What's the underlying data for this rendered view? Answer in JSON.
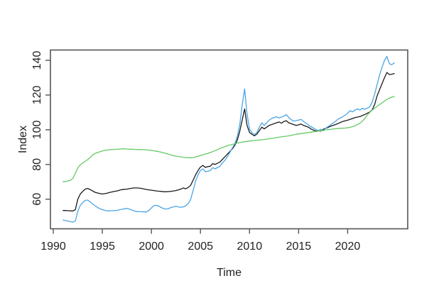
{
  "figure": {
    "background": "#ffffff",
    "box_color": "#555555",
    "tick_color": "#555555",
    "label_color": "#222222",
    "xlabel": "Time",
    "ylabel": "Index",
    "x_ticks": [
      1990,
      1995,
      2000,
      2005,
      2010,
      2015,
      2020
    ],
    "y_ticks": [
      60,
      80,
      100,
      120,
      140
    ]
  },
  "chart_data": {
    "type": "line",
    "title": "",
    "xlabel": "Time",
    "ylabel": "Index",
    "xlim": [
      1989.6,
      2026.1
    ],
    "ylim": [
      43,
      145.7
    ],
    "grid": false,
    "legend": "none",
    "x_start": 1991.0,
    "x_step": 0.25,
    "series": [
      {
        "name": "black-line",
        "color": "#1a1a1a",
        "values": [
          53.5,
          53.5,
          53.4,
          53.3,
          53.2,
          54.0,
          60.0,
          63.0,
          64.5,
          65.8,
          66.2,
          65.6,
          64.8,
          64.0,
          63.6,
          63.3,
          63.0,
          63.2,
          63.5,
          63.9,
          64.2,
          64.5,
          64.8,
          65.2,
          65.5,
          65.7,
          65.8,
          66.1,
          66.3,
          66.5,
          66.5,
          66.4,
          66.2,
          65.9,
          65.6,
          65.4,
          65.2,
          65.0,
          64.8,
          64.6,
          64.5,
          64.3,
          64.3,
          64.4,
          64.5,
          64.8,
          65.0,
          65.4,
          65.8,
          66.5,
          66.0,
          66.8,
          68.0,
          71.0,
          74.0,
          76.5,
          78.5,
          79.5,
          78.3,
          78.8,
          79.0,
          80.5,
          80.0,
          80.8,
          81.5,
          83.0,
          84.5,
          86.0,
          87.5,
          89.0,
          91.0,
          94.0,
          99.0,
          105.5,
          112.0,
          102.5,
          98.5,
          97.3,
          96.5,
          97.5,
          99.5,
          101.5,
          100.5,
          101.5,
          102.5,
          103.0,
          103.5,
          104.0,
          104.5,
          103.8,
          104.8,
          105.2,
          104.0,
          103.5,
          103.0,
          102.5,
          102.8,
          103.3,
          102.5,
          102.0,
          101.5,
          100.5,
          99.8,
          99.3,
          99.5,
          99.2,
          100.2,
          100.8,
          101.3,
          102.0,
          102.5,
          103.0,
          103.5,
          104.2,
          104.8,
          105.2,
          105.5,
          106.0,
          106.5,
          107.0,
          107.3,
          107.6,
          108.2,
          108.8,
          109.5,
          110.2,
          111.5,
          114.5,
          119.5,
          123.0,
          126.5,
          130.0,
          133.0,
          131.8,
          132.0,
          132.3
        ]
      },
      {
        "name": "blue-line",
        "color": "#4aa5e6",
        "values": [
          48.0,
          47.7,
          47.4,
          47.1,
          46.8,
          47.5,
          53.0,
          56.5,
          58.0,
          59.3,
          59.5,
          58.5,
          57.3,
          56.3,
          55.3,
          54.5,
          54.0,
          53.6,
          53.2,
          53.3,
          53.4,
          53.5,
          53.6,
          53.9,
          54.2,
          54.5,
          54.7,
          54.3,
          53.8,
          53.2,
          52.9,
          52.8,
          52.8,
          52.7,
          52.7,
          53.5,
          55.0,
          56.3,
          56.5,
          56.0,
          55.2,
          54.6,
          54.3,
          54.6,
          55.2,
          55.6,
          55.9,
          55.6,
          55.3,
          55.6,
          56.2,
          57.5,
          60.0,
          65.0,
          70.5,
          74.0,
          76.5,
          77.5,
          75.8,
          76.2,
          76.5,
          78.2,
          77.5,
          78.3,
          79.0,
          81.0,
          82.5,
          84.5,
          87.0,
          89.5,
          92.0,
          96.0,
          103.0,
          114.0,
          123.5,
          109.0,
          100.5,
          98.3,
          97.2,
          98.5,
          101.5,
          104.0,
          102.5,
          104.0,
          105.5,
          106.5,
          107.0,
          107.5,
          106.8,
          107.3,
          107.8,
          108.7,
          107.0,
          105.8,
          105.0,
          105.3,
          105.6,
          106.0,
          104.8,
          103.8,
          102.8,
          101.8,
          101.0,
          100.2,
          99.5,
          100.3,
          99.4,
          100.8,
          101.8,
          102.8,
          103.8,
          104.8,
          106.0,
          106.8,
          107.5,
          108.5,
          109.5,
          111.0,
          110.3,
          111.3,
          112.0,
          111.4,
          112.3,
          111.8,
          112.5,
          113.2,
          116.0,
          120.5,
          126.0,
          131.5,
          136.0,
          140.0,
          142.3,
          138.0,
          137.5,
          138.5
        ]
      },
      {
        "name": "green-line",
        "color": "#64c964",
        "values": [
          70.0,
          70.2,
          70.5,
          70.9,
          72.0,
          75.0,
          78.0,
          79.8,
          80.8,
          81.8,
          82.8,
          84.0,
          85.5,
          86.3,
          86.9,
          87.3,
          87.8,
          88.1,
          88.3,
          88.5,
          88.6,
          88.7,
          88.8,
          88.9,
          89.0,
          89.0,
          88.9,
          88.8,
          88.8,
          88.7,
          88.7,
          88.6,
          88.6,
          88.5,
          88.4,
          88.3,
          88.1,
          87.9,
          87.6,
          87.4,
          87.1,
          86.7,
          86.3,
          85.9,
          85.5,
          85.1,
          84.8,
          84.6,
          84.4,
          84.2,
          84.0,
          83.9,
          83.9,
          84.0,
          84.3,
          84.7,
          85.2,
          85.6,
          86.0,
          86.4,
          86.9,
          87.4,
          88.0,
          88.6,
          89.3,
          89.8,
          90.3,
          90.8,
          91.2,
          91.6,
          91.9,
          92.3,
          92.6,
          92.9,
          93.1,
          93.3,
          93.5,
          93.7,
          93.8,
          94.0,
          94.1,
          94.3,
          94.4,
          94.6,
          94.8,
          95.0,
          95.2,
          95.5,
          95.7,
          95.9,
          96.1,
          96.3,
          96.5,
          96.8,
          97.1,
          97.4,
          97.6,
          97.8,
          98.0,
          98.2,
          98.4,
          98.6,
          98.8,
          99.0,
          99.2,
          99.5,
          99.7,
          99.9,
          100.1,
          100.2,
          100.4,
          100.6,
          100.7,
          100.8,
          100.9,
          101.0,
          101.2,
          101.4,
          101.8,
          102.3,
          103.0,
          103.8,
          105.0,
          106.5,
          108.5,
          110.0,
          111.3,
          112.4,
          113.5,
          114.5,
          115.5,
          116.5,
          117.5,
          118.2,
          118.8,
          119.2
        ]
      }
    ]
  }
}
